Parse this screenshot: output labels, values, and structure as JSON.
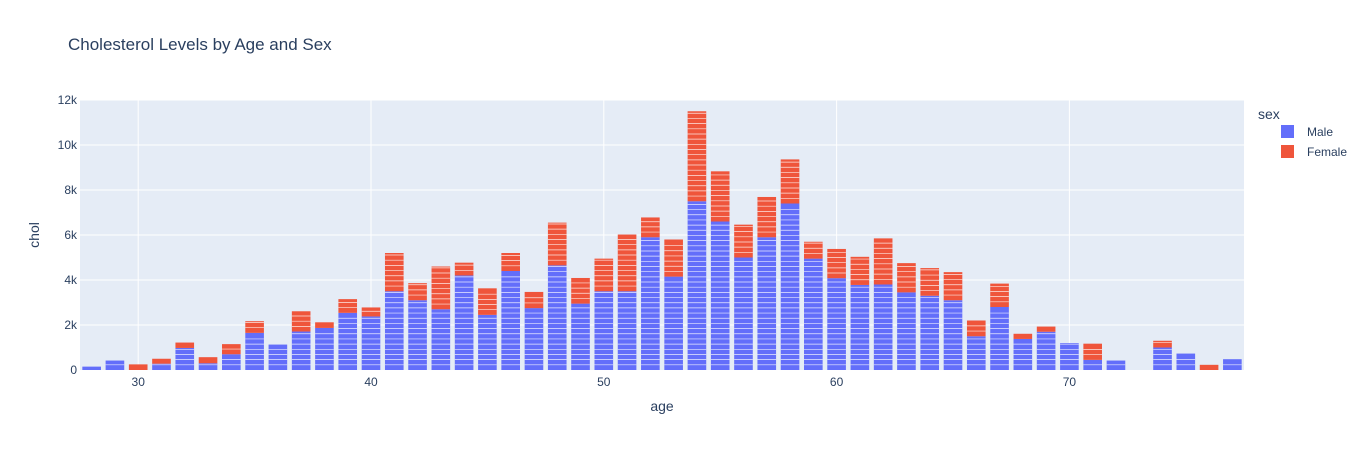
{
  "chart_data": {
    "type": "bar",
    "barmode": "stack",
    "title": "Cholesterol Levels by Age and Sex",
    "xlabel": "age",
    "ylabel": "chol",
    "x_ticks": [
      30,
      40,
      50,
      60,
      70
    ],
    "y_ticks": [
      0,
      2000,
      4000,
      6000,
      8000,
      10000,
      12000
    ],
    "y_tick_labels": [
      "0",
      "2k",
      "4k",
      "6k",
      "8k",
      "10k",
      "12k"
    ],
    "xlim": [
      27.5,
      77.5
    ],
    "ylim": [
      0,
      12000
    ],
    "grid": true,
    "legend": {
      "title": "sex",
      "position": "top-right"
    },
    "categories": [
      28,
      29,
      30,
      31,
      32,
      33,
      34,
      35,
      36,
      37,
      38,
      39,
      40,
      41,
      42,
      43,
      44,
      45,
      46,
      47,
      48,
      49,
      50,
      51,
      52,
      53,
      54,
      55,
      56,
      57,
      58,
      59,
      60,
      61,
      62,
      63,
      64,
      65,
      66,
      67,
      68,
      69,
      70,
      71,
      72,
      73,
      74,
      75,
      76,
      77
    ],
    "series": [
      {
        "name": "Male",
        "color": "#636efa",
        "values": [
          150,
          420,
          0,
          280,
          980,
          300,
          700,
          1650,
          1130,
          1710,
          1870,
          2540,
          2380,
          3500,
          3100,
          2700,
          4200,
          2450,
          4400,
          2750,
          4650,
          2950,
          3500,
          3500,
          5900,
          4150,
          7500,
          6600,
          5000,
          5900,
          7400,
          4950,
          4080,
          3780,
          3800,
          3450,
          3300,
          3100,
          1500,
          2800,
          1380,
          1700,
          1200,
          450,
          420,
          0,
          1000,
          730,
          0,
          480
        ]
      },
      {
        "name": "Female",
        "color": "#ef553b",
        "values": [
          0,
          0,
          250,
          220,
          240,
          270,
          450,
          520,
          0,
          900,
          250,
          610,
          400,
          1700,
          760,
          1900,
          570,
          1180,
          800,
          720,
          1900,
          1140,
          1450,
          2520,
          880,
          1650,
          4000,
          2230,
          1460,
          1790,
          1960,
          750,
          1300,
          1250,
          2050,
          1300,
          1230,
          1250,
          700,
          1040,
          230,
          230,
          0,
          720,
          0,
          0,
          300,
          0,
          230,
          0
        ]
      }
    ]
  }
}
